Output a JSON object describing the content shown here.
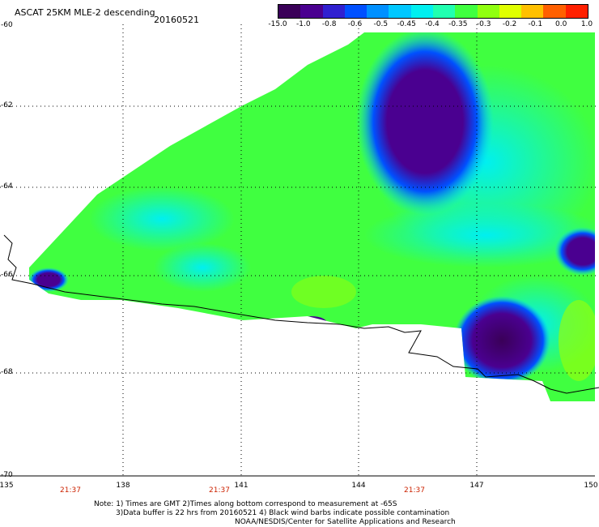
{
  "header": {
    "title": "ASCAT 25KM MLE-2 descending",
    "date": "20160521"
  },
  "colorbar": {
    "labels": [
      "-15.0",
      "-1.0",
      "-0.8",
      "-0.6",
      "-0.5",
      "-0.45",
      "-0.4",
      "-0.35",
      "-0.3",
      "-0.2",
      "-0.1",
      "0.0",
      "1.0"
    ],
    "colors": [
      "#3a0058",
      "#4a0090",
      "#3020d0",
      "#0050ff",
      "#0090ff",
      "#00c8ff",
      "#00f0f0",
      "#20ffb0",
      "#40ff40",
      "#90ff10",
      "#e0ff00",
      "#ffc000",
      "#ff6000",
      "#ff2000"
    ]
  },
  "map": {
    "lat_labels": [
      "-60",
      "-62",
      "-64",
      "-66",
      "-68",
      "-70"
    ],
    "lon_labels": [
      "135",
      "138",
      "141",
      "144",
      "147",
      "150"
    ],
    "time_labels": [
      "21:37",
      "21:37",
      "21:37"
    ]
  },
  "notes": {
    "line1": "Note: 1) Times are GMT 2)Times along bottom correspond to measurement at -65S",
    "line2": "3)Data buffer is 22 hrs from 20160521 4) Black wind barbs indicate possible contamination",
    "line3": "NOAA/NESDIS/Center for Satellite Applications and Research"
  }
}
